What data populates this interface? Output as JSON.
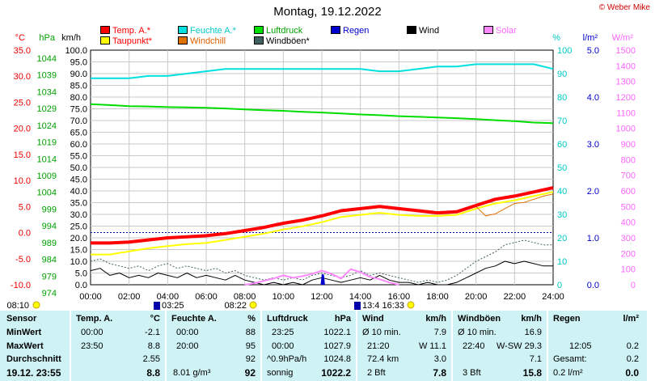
{
  "title": "Montag, 19.12.2022",
  "credit": "© Weber Mike",
  "legend": [
    {
      "label": "Temp. A.*",
      "color": "#ff0000",
      "text_color": "#ff0000"
    },
    {
      "label": "Taupunkt*",
      "color": "#ffff00",
      "text_color": "#ff0000"
    },
    {
      "label": "Feuchte A.*",
      "color": "#00e0e0",
      "text_color": "#00c8c8"
    },
    {
      "label": "Windchill",
      "color": "#e07000",
      "text_color": "#e06000"
    },
    {
      "label": "Luftdruck",
      "color": "#00dd00",
      "text_color": "#00a000"
    },
    {
      "label": "Windböen*",
      "color": "#406060",
      "text_color": "#000000"
    },
    {
      "label": "Regen",
      "color": "#0000cc",
      "text_color": "#0000cc"
    },
    {
      "label": "Wind",
      "color": "#000000",
      "text_color": "#000000"
    },
    {
      "label": "Solar",
      "color": "#ff88ff",
      "text_color": "#ff66ff"
    }
  ],
  "axis_units": {
    "temp": "°C",
    "pressure": "hPa",
    "wind": "km/h",
    "humidity": "%",
    "rain": "l/m²",
    "solar": "W/m²"
  },
  "axis_ticks": {
    "temp": [
      "35.0",
      "30.0",
      "25.0",
      "20.0",
      "15.0",
      "10.0",
      "5.0",
      "0.0",
      "-5.0",
      "-10.0"
    ],
    "pressure": [
      "1044",
      "1039",
      "1034",
      "1029",
      "1024",
      "1019",
      "1014",
      "1009",
      "1004",
      "999",
      "994",
      "989",
      "984",
      "979",
      "974"
    ],
    "wind": [
      "100.0",
      "95.0",
      "90.0",
      "85.0",
      "80.0",
      "75.0",
      "70.0",
      "65.0",
      "60.0",
      "55.0",
      "50.0",
      "45.0",
      "40.0",
      "35.0",
      "30.0",
      "25.0",
      "20.0",
      "15.0",
      "10.0",
      "5.0",
      "0.0"
    ],
    "humidity": [
      "100",
      "90",
      "80",
      "70",
      "60",
      "50",
      "40",
      "30",
      "20",
      "10",
      "0"
    ],
    "rain": [
      "5.0",
      "4.0",
      "3.0",
      "2.0",
      "1.0",
      "0.0"
    ],
    "solar": [
      "1500",
      "1400",
      "1300",
      "1200",
      "1100",
      "1000",
      "900",
      "800",
      "700",
      "600",
      "500",
      "400",
      "300",
      "200",
      "100",
      "0"
    ]
  },
  "time_labels": [
    "00:00",
    "02:00",
    "04:00",
    "06:00",
    "08:00",
    "10:00",
    "12:00",
    "14:00",
    "16:00",
    "18:00",
    "20:00",
    "22:00",
    "24:00"
  ],
  "sun_markers": [
    "08:10",
    "03:25",
    "08:22",
    "13:4",
    "16:33"
  ],
  "chart_data": {
    "type": "line",
    "x_unit": "hour",
    "xlim": [
      0,
      24
    ],
    "series": [
      {
        "name": "Temp. A.*",
        "axis": "temp °C",
        "x": [
          0,
          1,
          2,
          3,
          4,
          5,
          6,
          7,
          8,
          9,
          10,
          11,
          12,
          13,
          14,
          15,
          16,
          17,
          18,
          19,
          20,
          21,
          22,
          23,
          24
        ],
        "values": [
          -2.0,
          -2.0,
          -1.8,
          -1.4,
          -1.0,
          -0.8,
          -0.6,
          -0.2,
          0.4,
          1.0,
          1.8,
          2.4,
          3.2,
          4.2,
          4.6,
          5.0,
          4.6,
          4.2,
          3.8,
          4.0,
          5.2,
          6.4,
          7.0,
          7.8,
          8.6
        ]
      },
      {
        "name": "Taupunkt*",
        "axis": "temp °C",
        "x": [
          0,
          1,
          2,
          3,
          4,
          5,
          6,
          7,
          8,
          9,
          10,
          11,
          12,
          13,
          14,
          15,
          16,
          17,
          18,
          19,
          20,
          21,
          22,
          23,
          24
        ],
        "values": [
          -4.2,
          -4.2,
          -3.6,
          -3.0,
          -2.6,
          -2.2,
          -2.0,
          -1.4,
          -0.8,
          -0.2,
          0.6,
          1.2,
          2.0,
          3.0,
          3.4,
          3.8,
          3.4,
          3.2,
          3.2,
          3.4,
          4.6,
          5.6,
          6.2,
          7.0,
          7.8
        ]
      },
      {
        "name": "Windchill",
        "axis": "temp °C",
        "x": [
          20,
          20.5,
          21,
          21.5,
          22,
          22.5,
          23,
          23.5,
          24
        ],
        "values": [
          5.0,
          3.2,
          3.6,
          4.6,
          5.6,
          5.8,
          6.4,
          7.0,
          7.4
        ]
      },
      {
        "name": "Feuchte A.*",
        "axis": "humidity %",
        "x": [
          0,
          1,
          2,
          3,
          4,
          5,
          6,
          7,
          8,
          9,
          10,
          11,
          12,
          13,
          14,
          15,
          16,
          17,
          18,
          19,
          20,
          21,
          22,
          23,
          24
        ],
        "values": [
          88,
          88,
          88,
          89,
          89,
          90,
          91,
          92,
          92,
          92,
          92,
          92,
          92,
          92,
          92,
          91,
          91,
          92,
          93,
          93,
          94,
          94,
          94,
          94,
          92
        ]
      },
      {
        "name": "Luftdruck",
        "axis": "pressure hPa",
        "x": [
          0,
          1,
          2,
          3,
          4,
          5,
          6,
          7,
          8,
          9,
          10,
          11,
          12,
          13,
          14,
          15,
          16,
          17,
          18,
          19,
          20,
          21,
          22,
          23,
          24
        ],
        "values": [
          1027.9,
          1027.6,
          1027.3,
          1027.2,
          1027.0,
          1026.9,
          1026.8,
          1026.6,
          1026.3,
          1026.1,
          1025.9,
          1025.6,
          1025.4,
          1025.1,
          1024.8,
          1024.6,
          1024.3,
          1024.1,
          1023.9,
          1023.7,
          1023.4,
          1023.1,
          1022.8,
          1022.4,
          1022.2
        ]
      },
      {
        "name": "Wind",
        "axis": "wind km/h",
        "x": [
          0,
          0.5,
          1,
          1.5,
          2,
          2.5,
          3,
          3.5,
          4,
          4.5,
          5,
          5.5,
          6,
          6.5,
          7,
          7.5,
          8,
          8.5,
          9,
          9.5,
          10,
          10.5,
          11,
          11.5,
          12,
          12.5,
          13,
          13.5,
          14,
          14.5,
          15,
          15.5,
          16,
          16.5,
          17,
          17.5,
          18,
          18.5,
          19,
          19.5,
          20,
          20.5,
          21,
          21.5,
          22,
          22.5,
          23,
          23.5,
          24
        ],
        "values": [
          6,
          7,
          4,
          5,
          3,
          4,
          3,
          5,
          4,
          3,
          5,
          3,
          4,
          3,
          2,
          4,
          2,
          1,
          0,
          1,
          0,
          1,
          0,
          2,
          3,
          2,
          1,
          2,
          3,
          2,
          4,
          2,
          1,
          1,
          0,
          1,
          0,
          0,
          1,
          3,
          5,
          7,
          8,
          10,
          9,
          10,
          9,
          8,
          8
        ]
      },
      {
        "name": "Windböen*",
        "axis": "wind km/h",
        "x": [
          0,
          0.5,
          1,
          1.5,
          2,
          2.5,
          3,
          3.5,
          4,
          4.5,
          5,
          5.5,
          6,
          6.5,
          7,
          7.5,
          8,
          8.5,
          9,
          9.5,
          10,
          10.5,
          11,
          11.5,
          12,
          12.5,
          13,
          13.5,
          14,
          14.5,
          15,
          15.5,
          16,
          16.5,
          17,
          17.5,
          18,
          18.5,
          19,
          19.5,
          20,
          20.5,
          21,
          21.5,
          22,
          22.5,
          23,
          23.5,
          24
        ],
        "values": [
          10,
          11,
          9,
          8,
          7,
          8,
          6,
          8,
          9,
          7,
          8,
          7,
          6,
          7,
          5,
          6,
          4,
          3,
          2,
          3,
          2,
          3,
          2,
          4,
          5,
          4,
          3,
          4,
          6,
          4,
          5,
          4,
          3,
          2,
          1,
          2,
          1,
          2,
          4,
          7,
          10,
          12,
          14,
          17,
          18,
          19,
          18,
          17,
          17
        ]
      },
      {
        "name": "Solar",
        "axis": "solar W/m²",
        "x": [
          8,
          8.5,
          9,
          9.5,
          10,
          10.5,
          11,
          11.5,
          12,
          12.5,
          13,
          13.5,
          14,
          14.5,
          15,
          15.5,
          16
        ],
        "values": [
          0,
          10,
          25,
          40,
          60,
          45,
          55,
          70,
          90,
          70,
          40,
          100,
          80,
          50,
          35,
          15,
          0
        ]
      },
      {
        "name": "Regen",
        "axis": "rain l/m²",
        "x": [
          12,
          12.05,
          12.1
        ],
        "values": [
          0,
          0.2,
          0
        ]
      }
    ]
  },
  "stats": {
    "sensor": {
      "head": "Sensor",
      "min": "MinWert",
      "max": "MaxWert",
      "avg": "Durchschnitt",
      "now": "19.12. 23:55"
    },
    "temp": {
      "head": "Temp. A.",
      "unit": "°C",
      "min_t": "00:00",
      "min_v": "-2.1",
      "max_t": "23:50",
      "max_v": "8.8",
      "avg_v": "2.55",
      "now_v": "8.8"
    },
    "humidity": {
      "head": "Feuchte A.",
      "unit": "%",
      "min_t": "00:00",
      "min_v": "88",
      "max_t": "20:00",
      "max_v": "95",
      "avg_v": "92",
      "now_extra": "8.01 g/m³",
      "now_v": "92"
    },
    "pressure": {
      "head": "Luftdruck",
      "unit": "hPa",
      "min_t": "23:25",
      "min_v": "1022.1",
      "max_t": "00:00",
      "max_v": "1027.9",
      "avg_t": "^0.9hPa/h",
      "avg_v": "1024.8",
      "now_extra": "sonnig",
      "now_v": "1022.2"
    },
    "wind": {
      "head": "Wind",
      "unit": "km/h",
      "min_t": "Ø 10 min.",
      "min_v": "7.9",
      "max_t": "21:20",
      "max_v": "W 11.1",
      "avg_t": "72.4 km",
      "avg_v": "3.0",
      "now_extra": "2 Bft",
      "now_v": "7.8"
    },
    "gust": {
      "head": "Windböen",
      "unit": "km/h",
      "min_t": "Ø 10 min.",
      "min_v": "16.9",
      "max_t": "22:40",
      "max_v": "W-SW 29.3",
      "avg_v": "7.1",
      "now_extra": "3 Bft",
      "now_v": "15.8"
    },
    "rain": {
      "head": "Regen",
      "unit": "l/m²",
      "max_t": "12:05",
      "max_v": "0.2",
      "avg_t": "Gesamt:",
      "avg_v": "0.2",
      "now_extra": "0.2 l/m²",
      "now_v": "0.0"
    }
  }
}
